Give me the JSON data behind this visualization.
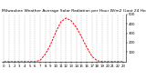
{
  "title": "Milwaukee Weather Average Solar Radiation per Hour W/m2 (Last 24 Hours)",
  "x_hours": [
    0,
    1,
    2,
    3,
    4,
    5,
    6,
    7,
    8,
    9,
    10,
    11,
    12,
    13,
    14,
    15,
    16,
    17,
    18,
    19,
    20,
    21,
    22,
    23
  ],
  "y_values": [
    0,
    0,
    0,
    0,
    0,
    0,
    0,
    15,
    80,
    180,
    310,
    420,
    460,
    430,
    360,
    260,
    150,
    55,
    10,
    0,
    0,
    0,
    0,
    0
  ],
  "line_color": "#ff0000",
  "bg_color": "#ffffff",
  "grid_color": "#999999",
  "ylim": [
    0,
    500
  ],
  "ytick_values": [
    100,
    200,
    300,
    400,
    500
  ],
  "title_fontsize": 3.2,
  "tick_fontsize": 2.8,
  "line_width": 0.7
}
